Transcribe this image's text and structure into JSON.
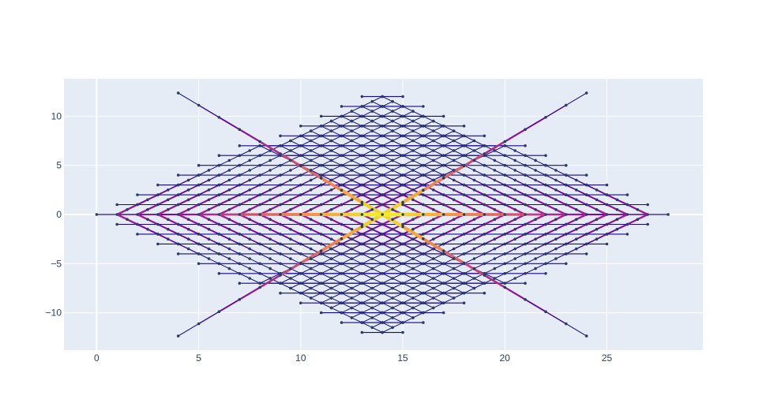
{
  "chart_data": {
    "type": "line",
    "title": "",
    "xlabel": "",
    "ylabel": "",
    "xlim": [
      -1.6,
      29.7
    ],
    "ylim": [
      -13.8,
      13.8
    ],
    "x_ticks": [
      0,
      5,
      10,
      15,
      20,
      25
    ],
    "y_ticks": [
      -10,
      -5,
      0,
      5,
      10
    ],
    "y_tick_labels": [
      "−10",
      "−5",
      "0",
      "5",
      "10"
    ],
    "grid": true,
    "legend": false,
    "series": [
      {
        "kind": "symmetric-branching-tree",
        "x_range": [
          0,
          28
        ],
        "y_range": [
          -12.3,
          12.3
        ],
        "trunk_y": 0,
        "main_junction_x": 14,
        "main_diagonal_slope": 1.03,
        "node_marker_color": "#2a3f5f",
        "edge_colormap": "plasma",
        "max_flow_color": "#f0f921",
        "min_flow_color": "#0d0887"
      }
    ],
    "colors": {
      "plot_bg": "#e5ecf6",
      "paper_bg": "#ffffff",
      "grid": "#ffffff",
      "tick_text": "#2a3f5f"
    }
  }
}
